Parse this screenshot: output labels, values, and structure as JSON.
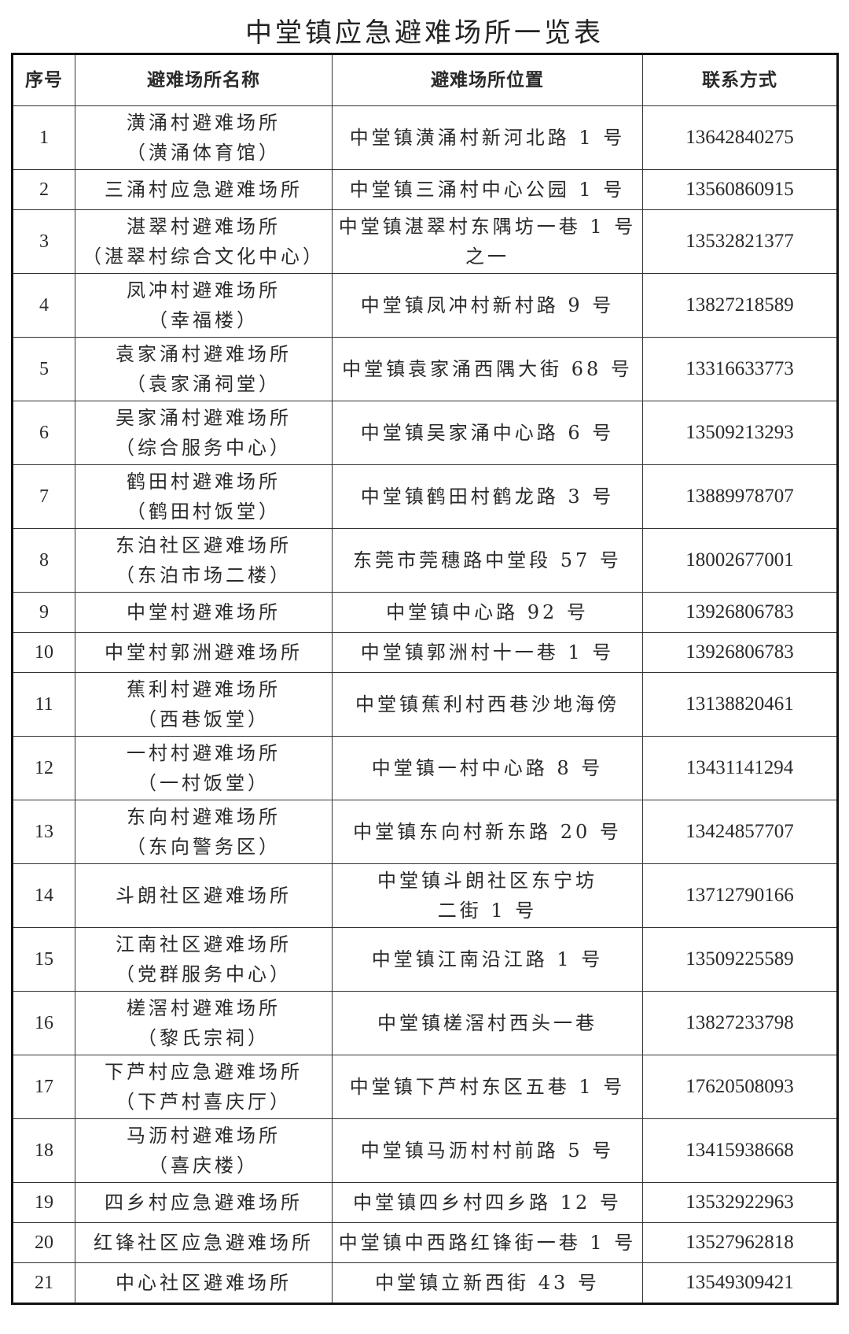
{
  "title": "中堂镇应急避难场所一览表",
  "headers": [
    "序号",
    "避难场所名称",
    "避难场所位置",
    "联系方式"
  ],
  "rows": [
    {
      "no": "1",
      "name": [
        "潢涌村避难场所",
        "（潢涌体育馆）"
      ],
      "location": [
        "中堂镇潢涌村新河北路 1 号"
      ],
      "phone": "13642840275"
    },
    {
      "no": "2",
      "name": [
        "三涌村应急避难场所"
      ],
      "location": [
        "中堂镇三涌村中心公园 1 号"
      ],
      "phone": "13560860915"
    },
    {
      "no": "3",
      "name": [
        "湛翠村避难场所",
        "（湛翠村综合文化中心）"
      ],
      "location": [
        "中堂镇湛翠村东隅坊一巷 1 号",
        "之一"
      ],
      "phone": "13532821377"
    },
    {
      "no": "4",
      "name": [
        "凤冲村避难场所",
        "（幸福楼）"
      ],
      "location": [
        "中堂镇凤冲村新村路 9 号"
      ],
      "phone": "13827218589"
    },
    {
      "no": "5",
      "name": [
        "袁家涌村避难场所",
        "（袁家涌祠堂）"
      ],
      "location": [
        "中堂镇袁家涌西隅大街 68 号"
      ],
      "phone": "13316633773"
    },
    {
      "no": "6",
      "name": [
        "吴家涌村避难场所",
        "（综合服务中心）"
      ],
      "location": [
        "中堂镇吴家涌中心路 6 号"
      ],
      "phone": "13509213293"
    },
    {
      "no": "7",
      "name": [
        "鹤田村避难场所",
        "（鹤田村饭堂）"
      ],
      "location": [
        "中堂镇鹤田村鹤龙路 3 号"
      ],
      "phone": "13889978707"
    },
    {
      "no": "8",
      "name": [
        "东泊社区避难场所",
        "（东泊市场二楼）"
      ],
      "location": [
        "东莞市莞穗路中堂段 57 号"
      ],
      "phone": "18002677001"
    },
    {
      "no": "9",
      "name": [
        "中堂村避难场所"
      ],
      "location": [
        "中堂镇中心路 92 号"
      ],
      "phone": "13926806783"
    },
    {
      "no": "10",
      "name": [
        "中堂村郭洲避难场所"
      ],
      "location": [
        "中堂镇郭洲村十一巷 1 号"
      ],
      "phone": "13926806783"
    },
    {
      "no": "11",
      "name": [
        "蕉利村避难场所",
        "（西巷饭堂）"
      ],
      "location": [
        "中堂镇蕉利村西巷沙地海傍"
      ],
      "phone": "13138820461"
    },
    {
      "no": "12",
      "name": [
        "一村村避难场所",
        "（一村饭堂）"
      ],
      "location": [
        "中堂镇一村中心路 8 号"
      ],
      "phone": "13431141294"
    },
    {
      "no": "13",
      "name": [
        "东向村避难场所",
        "（东向警务区）"
      ],
      "location": [
        "中堂镇东向村新东路 20 号"
      ],
      "phone": "13424857707"
    },
    {
      "no": "14",
      "name": [
        "斗朗社区避难场所"
      ],
      "location": [
        "中堂镇斗朗社区东宁坊",
        "二街 1 号"
      ],
      "phone": "13712790166"
    },
    {
      "no": "15",
      "name": [
        "江南社区避难场所",
        "（党群服务中心）"
      ],
      "location": [
        "中堂镇江南沿江路 1 号"
      ],
      "phone": "13509225589"
    },
    {
      "no": "16",
      "name": [
        "槎滘村避难场所",
        "（黎氏宗祠）"
      ],
      "location": [
        "中堂镇槎滘村西头一巷"
      ],
      "phone": "13827233798"
    },
    {
      "no": "17",
      "name": [
        "下芦村应急避难场所",
        "（下芦村喜庆厅）"
      ],
      "location": [
        "中堂镇下芦村东区五巷 1 号"
      ],
      "phone": "17620508093"
    },
    {
      "no": "18",
      "name": [
        "马沥村避难场所",
        "（喜庆楼）"
      ],
      "location": [
        "中堂镇马沥村村前路 5 号"
      ],
      "phone": "13415938668"
    },
    {
      "no": "19",
      "name": [
        "四乡村应急避难场所"
      ],
      "location": [
        "中堂镇四乡村四乡路 12 号"
      ],
      "phone": "13532922963"
    },
    {
      "no": "20",
      "name": [
        "红锋社区应急避难场所"
      ],
      "location": [
        "中堂镇中西路红锋街一巷 1 号"
      ],
      "phone": "13527962818"
    },
    {
      "no": "21",
      "name": [
        "中心社区避难场所"
      ],
      "location": [
        "中堂镇立新西街 43 号"
      ],
      "phone": "13549309421"
    }
  ]
}
